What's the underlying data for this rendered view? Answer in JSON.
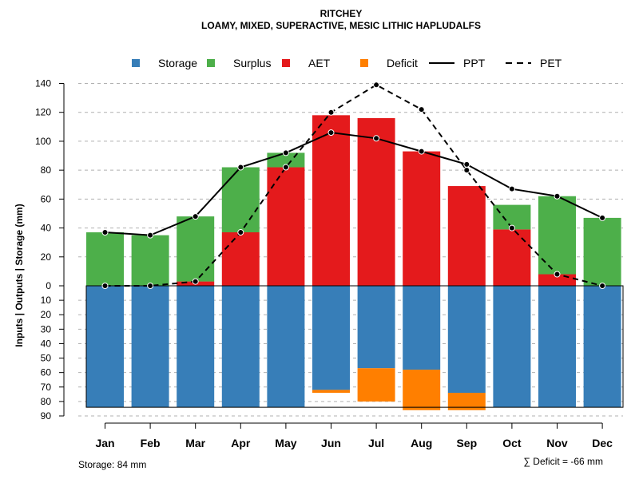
{
  "chart_data": {
    "type": "bar",
    "title": "RITCHEY",
    "subtitle": "LOAMY, MIXED, SUPERACTIVE, MESIC LITHIC HAPLUDALFS",
    "ylabel": "Inputs | Outputs | Storage    (mm)",
    "categories": [
      "Jan",
      "Feb",
      "Mar",
      "Apr",
      "May",
      "Jun",
      "Jul",
      "Aug",
      "Sep",
      "Oct",
      "Nov",
      "Dec"
    ],
    "ylim_upper": [
      0,
      140
    ],
    "ylim_lower": [
      0,
      90
    ],
    "upper_ticks": [
      "0",
      "20",
      "40",
      "60",
      "80",
      "100",
      "120",
      "140"
    ],
    "lower_ticks": [
      "10",
      "20",
      "30",
      "40",
      "50",
      "60",
      "70",
      "80",
      "90"
    ],
    "legend": [
      {
        "label": "Storage",
        "kind": "box",
        "color": "#377EB8"
      },
      {
        "label": "Surplus",
        "kind": "box",
        "color": "#4DAF4A"
      },
      {
        "label": "AET",
        "kind": "box",
        "color": "#E41A1C"
      },
      {
        "label": "Deficit",
        "kind": "box",
        "color": "#FF7F00"
      },
      {
        "label": "PPT",
        "kind": "solid",
        "color": "#000000"
      },
      {
        "label": "PET",
        "kind": "dashed",
        "color": "#000000"
      }
    ],
    "series": [
      {
        "name": "AET",
        "values": [
          0,
          0,
          3,
          37,
          82,
          118,
          116,
          93,
          69,
          39,
          8,
          0
        ]
      },
      {
        "name": "Surplus",
        "values": [
          37,
          35,
          45,
          45,
          10,
          0,
          0,
          0,
          0,
          17,
          54,
          47
        ]
      },
      {
        "name": "Storage",
        "values": [
          84,
          84,
          84,
          84,
          84,
          72,
          57,
          58,
          74,
          84,
          84,
          84
        ]
      },
      {
        "name": "Deficit",
        "values": [
          0,
          0,
          0,
          0,
          0,
          2,
          23,
          28,
          12,
          0,
          0,
          0
        ]
      },
      {
        "name": "PPT",
        "values": [
          37,
          35,
          48,
          82,
          92,
          106,
          102,
          93,
          84,
          67,
          62,
          47
        ]
      },
      {
        "name": "PET",
        "values": [
          0,
          0,
          3,
          37,
          82,
          120,
          139,
          122,
          80,
          40,
          8,
          0
        ]
      }
    ],
    "colors": {
      "storage": "#377EB8",
      "surplus": "#4DAF4A",
      "aet": "#E41A1C",
      "deficit": "#FF7F00",
      "grid": "#B0B0B0"
    },
    "storage_label": "Storage: 84 mm",
    "deficit_label": "∑ Deficit = -66 mm"
  }
}
